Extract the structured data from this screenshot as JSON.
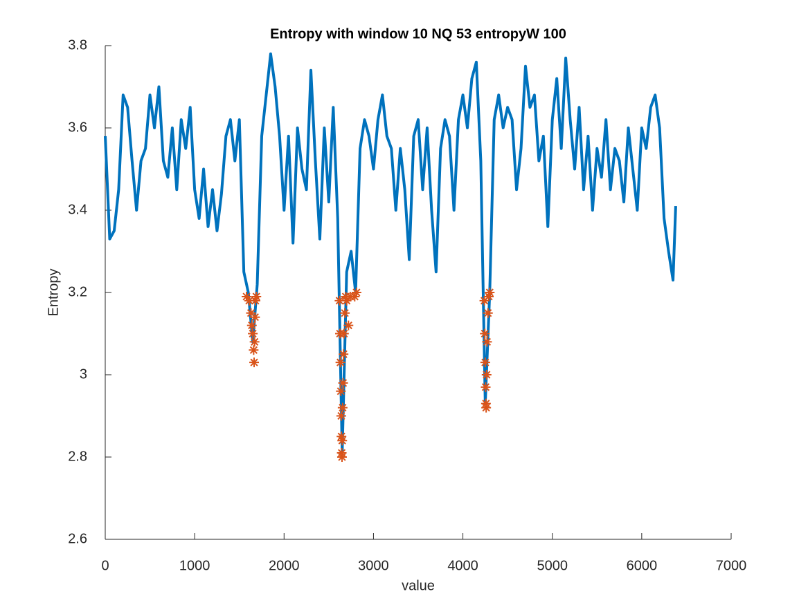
{
  "chart_data": {
    "type": "line",
    "title": "Entropy with window 10  NQ 53  entropyW 100",
    "xlabel": "value",
    "ylabel": "Entropy",
    "xlim": [
      0,
      7000
    ],
    "ylim": [
      2.6,
      3.8
    ],
    "xticks": [
      0,
      1000,
      2000,
      3000,
      4000,
      5000,
      6000,
      7000
    ],
    "yticks": [
      2.6,
      2.8,
      3,
      3.2,
      3.4,
      3.6,
      3.8
    ],
    "grid": false,
    "series": [
      {
        "type": "line",
        "color": "#0072bd",
        "x": [
          0,
          50,
          100,
          150,
          200,
          250,
          300,
          350,
          400,
          450,
          500,
          550,
          600,
          650,
          700,
          750,
          800,
          850,
          900,
          950,
          1000,
          1050,
          1100,
          1150,
          1200,
          1250,
          1300,
          1350,
          1400,
          1450,
          1500,
          1550,
          1600,
          1650,
          1700,
          1750,
          1800,
          1850,
          1900,
          1950,
          2000,
          2050,
          2100,
          2150,
          2200,
          2250,
          2300,
          2350,
          2400,
          2450,
          2500,
          2550,
          2600,
          2650,
          2700,
          2750,
          2800,
          2850,
          2900,
          2950,
          3000,
          3050,
          3100,
          3150,
          3200,
          3250,
          3300,
          3350,
          3400,
          3450,
          3500,
          3550,
          3600,
          3650,
          3700,
          3750,
          3800,
          3850,
          3900,
          3950,
          4000,
          4050,
          4100,
          4150,
          4200,
          4250,
          4300,
          4350,
          4400,
          4450,
          4500,
          4550,
          4600,
          4650,
          4700,
          4750,
          4800,
          4850,
          4900,
          4950,
          5000,
          5050,
          5100,
          5150,
          5200,
          5250,
          5300,
          5350,
          5400,
          5450,
          5500,
          5550,
          5600,
          5650,
          5700,
          5750,
          5800,
          5850,
          5900,
          5950,
          6000,
          6050,
          6100,
          6150,
          6200,
          6250,
          6300,
          6350,
          6380
        ],
        "values": [
          3.58,
          3.33,
          3.35,
          3.45,
          3.68,
          3.65,
          3.52,
          3.4,
          3.52,
          3.55,
          3.68,
          3.6,
          3.7,
          3.52,
          3.48,
          3.6,
          3.45,
          3.62,
          3.55,
          3.65,
          3.45,
          3.38,
          3.5,
          3.36,
          3.45,
          3.35,
          3.44,
          3.58,
          3.62,
          3.52,
          3.62,
          3.25,
          3.2,
          3.08,
          3.22,
          3.58,
          3.68,
          3.78,
          3.7,
          3.58,
          3.4,
          3.58,
          3.32,
          3.6,
          3.5,
          3.45,
          3.74,
          3.52,
          3.33,
          3.6,
          3.42,
          3.65,
          3.38,
          2.81,
          3.25,
          3.3,
          3.2,
          3.55,
          3.62,
          3.58,
          3.5,
          3.62,
          3.68,
          3.58,
          3.55,
          3.4,
          3.55,
          3.45,
          3.28,
          3.58,
          3.62,
          3.45,
          3.6,
          3.4,
          3.25,
          3.55,
          3.62,
          3.58,
          3.4,
          3.62,
          3.68,
          3.6,
          3.72,
          3.76,
          3.52,
          2.93,
          3.2,
          3.62,
          3.68,
          3.6,
          3.65,
          3.62,
          3.45,
          3.55,
          3.75,
          3.65,
          3.68,
          3.52,
          3.58,
          3.36,
          3.62,
          3.72,
          3.55,
          3.77,
          3.62,
          3.5,
          3.65,
          3.45,
          3.58,
          3.4,
          3.55,
          3.48,
          3.62,
          3.45,
          3.55,
          3.52,
          3.42,
          3.6,
          3.5,
          3.4,
          3.6,
          3.55,
          3.65,
          3.68,
          3.6,
          3.38,
          3.3,
          3.23,
          3.41
        ]
      },
      {
        "type": "scatter",
        "marker": "*",
        "color": "#d95319",
        "x": [
          1580,
          1610,
          1630,
          1640,
          1650,
          1660,
          1665,
          1670,
          1675,
          1680,
          1690,
          2620,
          2625,
          2630,
          2635,
          2640,
          2642,
          2645,
          2648,
          2650,
          2655,
          2660,
          2665,
          2670,
          2680,
          2690,
          2700,
          2720,
          2740,
          2790,
          2810,
          4240,
          4245,
          4250,
          4255,
          4258,
          4260,
          4265,
          4270,
          4280,
          4290,
          4300
        ],
        "values": [
          3.19,
          3.18,
          3.15,
          3.12,
          3.1,
          3.06,
          3.03,
          3.08,
          3.14,
          3.18,
          3.19,
          3.18,
          3.1,
          3.03,
          2.96,
          2.9,
          2.85,
          2.81,
          2.8,
          2.84,
          2.92,
          2.98,
          3.05,
          3.1,
          3.15,
          3.19,
          3.18,
          3.12,
          3.19,
          3.19,
          3.2,
          3.18,
          3.1,
          3.03,
          2.97,
          2.93,
          2.92,
          3,
          3.08,
          3.15,
          3.19,
          3.2
        ]
      }
    ]
  }
}
